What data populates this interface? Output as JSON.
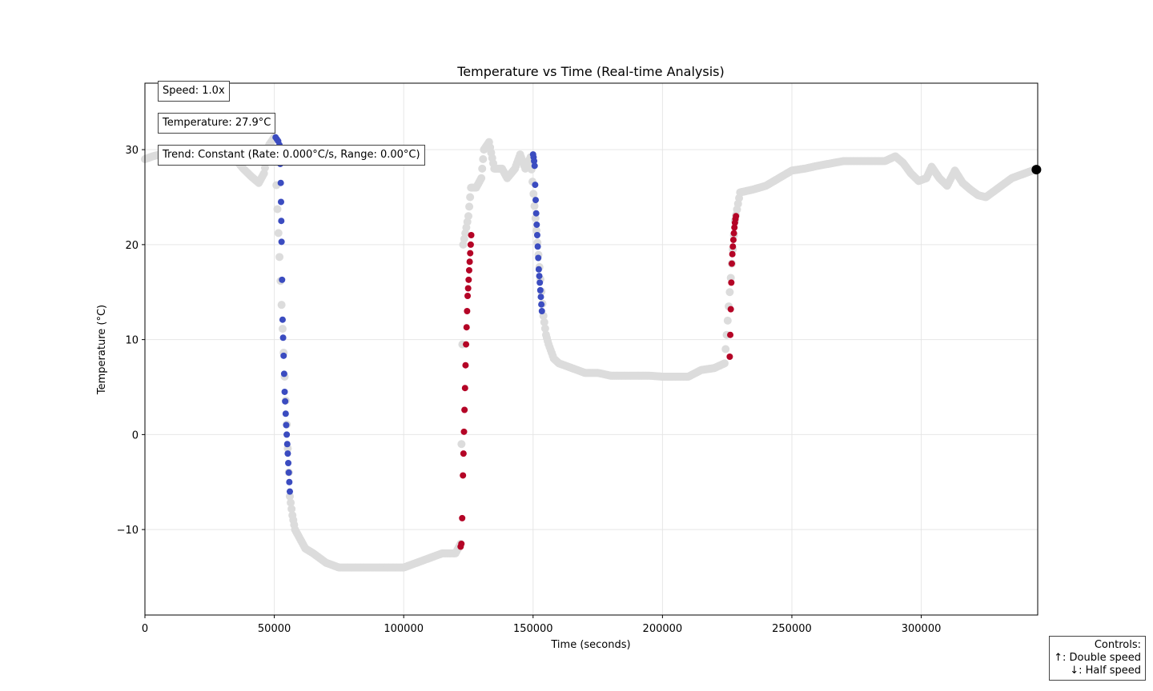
{
  "info": {
    "speed": "Speed: 1.0x",
    "temperature": "Temperature: 27.9°C",
    "trend": "Trend: Constant (Rate: 0.000°C/s, Range: 0.00°C)"
  },
  "controls": {
    "title": "Controls:",
    "up": "↑: Double speed",
    "down": "↓: Half speed"
  },
  "colors": {
    "history": "#dcdcdc",
    "cooling": "#3b4cc0",
    "heating": "#b40426",
    "current": "#000000",
    "grid": "#e6e6e6"
  },
  "chart_data": {
    "type": "scatter",
    "title": "Temperature vs Time (Real-time Analysis)",
    "xlabel": "Time (seconds)",
    "ylabel": "Temperature (°C)",
    "xlim": [
      0,
      345000
    ],
    "ylim": [
      -19,
      37
    ],
    "xticks": [
      0,
      50000,
      100000,
      150000,
      200000,
      250000,
      300000
    ],
    "yticks": [
      -10,
      0,
      10,
      20,
      30
    ],
    "grid": true,
    "series": [
      {
        "role": "history",
        "color": "#dcdcdc",
        "x": [
          0,
          3000,
          6000,
          10000,
          15000,
          20000,
          25000,
          30000,
          35000,
          38000,
          41000,
          44000,
          46000,
          48000,
          50000,
          56000,
          57000,
          58000,
          60000,
          62000,
          65000,
          70000,
          75000,
          80000,
          85000,
          90000,
          95000,
          100000,
          105000,
          110000,
          115000,
          120000,
          122000,
          123000,
          125000,
          126000,
          128000,
          130000,
          131000,
          133000,
          135000,
          138000,
          140000,
          143000,
          145000,
          147000,
          149000,
          154000,
          155000,
          156000,
          158000,
          160000,
          165000,
          170000,
          175000,
          180000,
          185000,
          190000,
          195000,
          200000,
          205000,
          210000,
          215000,
          220000,
          224000,
          228000,
          230000,
          235000,
          240000,
          245000,
          250000,
          255000,
          260000,
          270000,
          280000,
          286000,
          290000,
          293000,
          296000,
          299000,
          302000,
          304000,
          307000,
          310000,
          313000,
          316000,
          319000,
          322000,
          325000,
          330000,
          335000,
          340000,
          344000
        ],
        "y": [
          29,
          29.3,
          29.5,
          29.5,
          29.6,
          29.5,
          29.6,
          29.4,
          29,
          28,
          27.2,
          26.5,
          27.5,
          30.5,
          31.3,
          -6.5,
          -8.5,
          -10,
          -11,
          -12,
          -12.5,
          -13.5,
          -14,
          -14,
          -14,
          -14,
          -14,
          -14,
          -13.5,
          -13,
          -12.5,
          -12.5,
          -11.5,
          20,
          23,
          26,
          26,
          27,
          30,
          30.8,
          28,
          28,
          27,
          28,
          29.5,
          28,
          29.2,
          12.5,
          10.5,
          9.5,
          8,
          7.5,
          7,
          6.5,
          6.5,
          6.2,
          6.2,
          6.2,
          6.2,
          6.1,
          6.1,
          6.1,
          6.8,
          7,
          7.5,
          22.5,
          25.5,
          25.8,
          26.2,
          27,
          27.8,
          28,
          28.3,
          28.8,
          28.8,
          28.8,
          29.3,
          28.6,
          27.5,
          26.7,
          27,
          28.2,
          27,
          26.2,
          27.8,
          26.5,
          25.8,
          25.2,
          25,
          26,
          27,
          27.5,
          27.9
        ]
      },
      {
        "role": "cooling",
        "color": "#3b4cc0",
        "x": [
          50500,
          51000,
          51500,
          52000,
          52300,
          52500,
          52600,
          52700,
          52800,
          53000,
          53200,
          53400,
          53600,
          53800,
          54000,
          54200,
          54400,
          54600,
          54800,
          55000,
          55200,
          55400,
          55600,
          55800,
          56000,
          150000,
          150200,
          150400,
          150600,
          150800,
          151000,
          151200,
          151400,
          151600,
          151800,
          152000,
          152200,
          152400,
          152600,
          152800,
          153000,
          153200,
          153400
        ],
        "y": [
          31.3,
          31.1,
          30.9,
          30.5,
          28.5,
          26.5,
          24.5,
          22.5,
          20.3,
          16.3,
          12.1,
          10.2,
          8.3,
          6.4,
          4.5,
          3.5,
          2.2,
          1.0,
          0,
          -1.0,
          -2.0,
          -3.0,
          -4.0,
          -5.0,
          -6.0,
          29.5,
          29.2,
          28.8,
          28.3,
          26.3,
          24.7,
          23.3,
          22.1,
          21.0,
          19.8,
          18.6,
          17.4,
          16.7,
          16.0,
          15.2,
          14.5,
          13.7,
          13.0
        ]
      },
      {
        "role": "heating",
        "color": "#b40426",
        "x": [
          122000,
          122300,
          122600,
          122900,
          123100,
          123300,
          123500,
          123700,
          123900,
          124100,
          124300,
          124500,
          124700,
          124900,
          125100,
          125300,
          125500,
          125700,
          125900,
          126100,
          226000,
          226200,
          226400,
          226600,
          226800,
          227000,
          227200,
          227400,
          227600,
          227800,
          228000,
          228200,
          228400
        ],
        "y": [
          -11.8,
          -11.5,
          -8.8,
          -4.3,
          -2.0,
          0.3,
          2.6,
          4.9,
          7.3,
          9.5,
          11.3,
          13.0,
          14.6,
          15.4,
          16.3,
          17.3,
          18.2,
          19.1,
          20.0,
          21.0,
          8.2,
          10.5,
          13.2,
          16.0,
          18.0,
          19.0,
          19.8,
          20.5,
          21.2,
          21.8,
          22.3,
          22.7,
          23.0
        ]
      },
      {
        "role": "current",
        "color": "#000000",
        "x": [
          344500
        ],
        "y": [
          27.9
        ]
      }
    ]
  }
}
